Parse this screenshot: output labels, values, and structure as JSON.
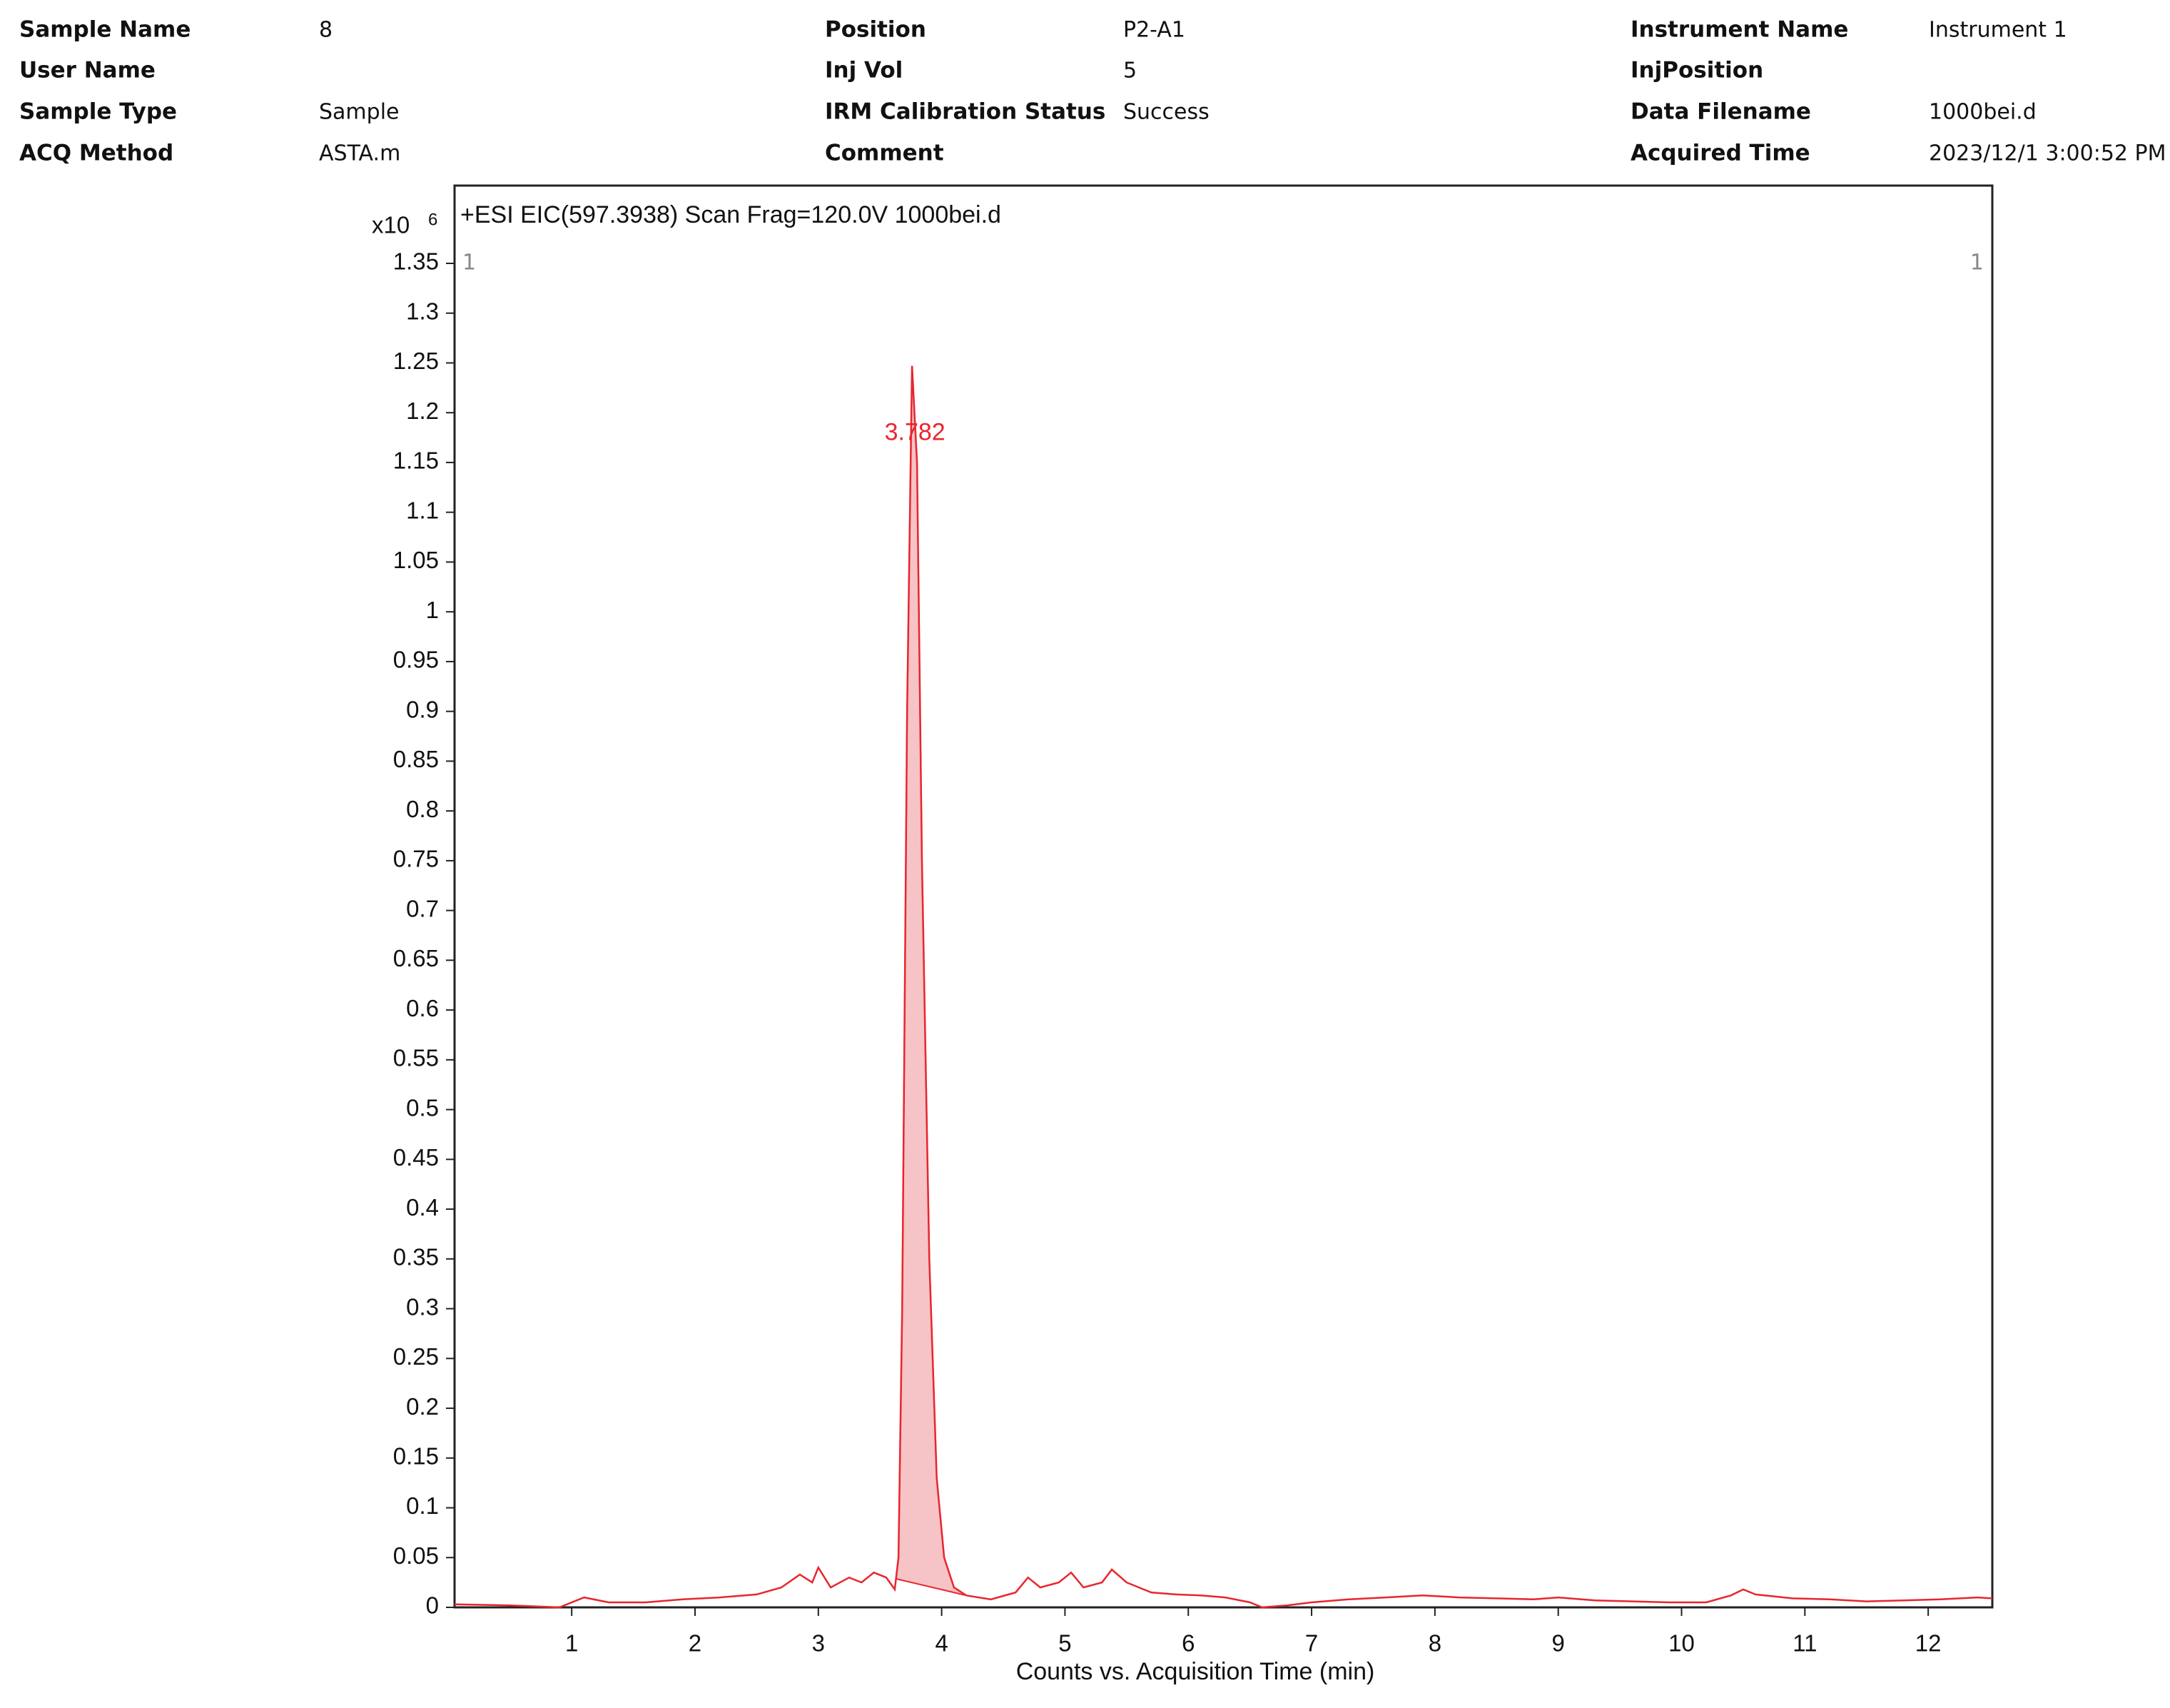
{
  "header": {
    "fields": [
      {
        "label": "Sample Name",
        "value": "8"
      },
      {
        "label": "User Name"
      },
      {
        "label": "Sample Type",
        "value": "Sample"
      },
      {
        "label": "ACQ Method",
        "value": "ASTA.m"
      },
      {
        "label": "Position",
        "value": "P2-A1"
      },
      {
        "label": "Inj Vol",
        "value": "5"
      },
      {
        "label": "IRM Calibration Status",
        "value": "Success"
      },
      {
        "label": "Comment"
      },
      {
        "label": "Instrument Name",
        "value": "Instrument 1"
      },
      {
        "label": "InjPosition"
      },
      {
        "label": "Data Filename",
        "value": "1000bei.d"
      },
      {
        "label": "Acquired Time",
        "value": "2023/12/1 3:00:52 PM"
      }
    ]
  },
  "chart_data": {
    "type": "line",
    "title": "+ESI EIC(597.3938) Scan Frag=120.0V 1000bei.d",
    "x_label": "Counts vs. Acquisition Time (min)",
    "y_scale_label": "x10",
    "y_scale_exponent": "6",
    "corner_labels": [
      "1",
      "1"
    ],
    "annotation": "3.782",
    "color": "#e8262e",
    "fill_color": "#f6c3c6",
    "peak_area": {
      "x_start": 3.63,
      "x_end": 4.2
    },
    "x": [
      0.05,
      0.5,
      0.9,
      1.1,
      1.3,
      1.6,
      1.9,
      2.2,
      2.5,
      2.7,
      2.85,
      2.95,
      3.0,
      3.1,
      3.25,
      3.35,
      3.45,
      3.55,
      3.62,
      3.65,
      3.68,
      3.72,
      3.76,
      3.8,
      3.84,
      3.9,
      3.96,
      4.02,
      4.1,
      4.2,
      4.4,
      4.6,
      4.7,
      4.8,
      4.95,
      5.05,
      5.15,
      5.3,
      5.38,
      5.5,
      5.7,
      5.9,
      6.1,
      6.3,
      6.5,
      6.6,
      6.8,
      7.0,
      7.3,
      7.6,
      7.9,
      8.2,
      8.5,
      8.8,
      9.0,
      9.3,
      9.6,
      9.9,
      10.2,
      10.4,
      10.5,
      10.6,
      10.9,
      11.2,
      11.5,
      11.8,
      12.1,
      12.4,
      12.52
    ],
    "values": [
      0.003,
      0.002,
      0.0,
      0.01,
      0.005,
      0.005,
      0.008,
      0.01,
      0.013,
      0.02,
      0.033,
      0.025,
      0.04,
      0.02,
      0.03,
      0.025,
      0.035,
      0.03,
      0.018,
      0.05,
      0.3,
      0.9,
      1.247,
      1.15,
      0.75,
      0.35,
      0.13,
      0.05,
      0.02,
      0.012,
      0.008,
      0.015,
      0.03,
      0.02,
      0.025,
      0.035,
      0.02,
      0.025,
      0.038,
      0.025,
      0.015,
      0.013,
      0.012,
      0.01,
      0.005,
      0.0,
      0.002,
      0.005,
      0.008,
      0.01,
      0.012,
      0.01,
      0.009,
      0.008,
      0.01,
      0.007,
      0.006,
      0.005,
      0.005,
      0.012,
      0.018,
      0.013,
      0.009,
      0.008,
      0.006,
      0.007,
      0.008,
      0.01,
      0.009
    ],
    "xlim": [
      0.05,
      12.52
    ],
    "ylim": [
      0,
      1.35
    ],
    "xticks": [
      1,
      2,
      3,
      4,
      5,
      6,
      7,
      8,
      9,
      10,
      11,
      12
    ],
    "yticks": [
      0,
      0.05,
      0.1,
      0.15,
      0.2,
      0.25,
      0.3,
      0.35,
      0.4,
      0.45,
      0.5,
      0.55,
      0.6,
      0.65,
      0.7,
      0.75,
      0.8,
      0.85,
      0.9,
      0.95,
      1,
      1.05,
      1.1,
      1.15,
      1.2,
      1.25,
      1.3,
      1.35
    ]
  }
}
